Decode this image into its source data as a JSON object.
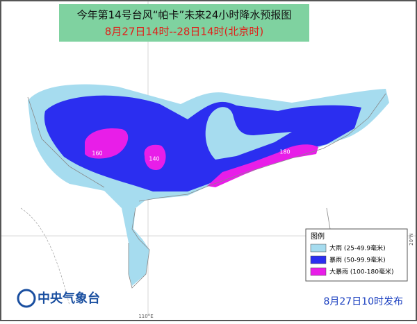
{
  "title": "今年第14号台风“帕卡”未来24小时降水预报图",
  "subtitle": "8月27日14时--28日14时(北京时)",
  "legend": {
    "title": "图例",
    "items": [
      {
        "label": "大雨 (25-49.9毫米)",
        "color": "#a6dcef"
      },
      {
        "label": "暴雨 (50-99.9毫米)",
        "color": "#2b2ef0"
      },
      {
        "label": "大暴雨 (100-180毫米)",
        "color": "#e81ee8"
      }
    ]
  },
  "labels": [
    "160",
    "140",
    "180"
  ],
  "axes": {
    "lon": "110°E",
    "lat": "20°N"
  },
  "footer": {
    "agency": "中央气象台",
    "issued": "8月27日10时发布"
  }
}
